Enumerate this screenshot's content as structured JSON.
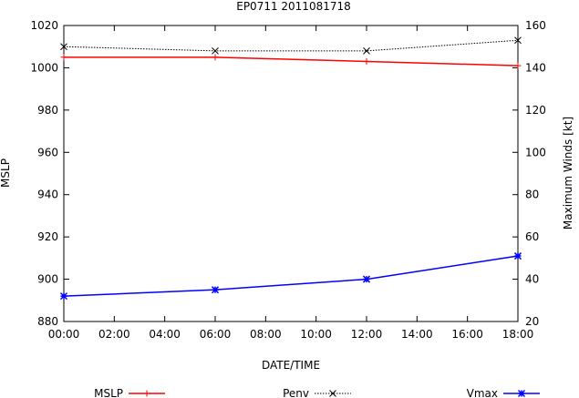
{
  "chart_data": {
    "type": "line",
    "title": "EP0711 2011081718",
    "xlabel": "DATE/TIME",
    "ylabel": "MSLP",
    "y2label": "Maximum Winds [kt]",
    "x": [
      "00:00",
      "06:00",
      "12:00",
      "18:00"
    ],
    "x_hours": [
      0,
      6,
      12,
      18
    ],
    "xticks": [
      "00:00",
      "02:00",
      "04:00",
      "06:00",
      "08:00",
      "10:00",
      "12:00",
      "14:00",
      "16:00",
      "18:00"
    ],
    "xlim": [
      0,
      18
    ],
    "ylim": [
      880,
      1020
    ],
    "yticks": [
      880,
      900,
      920,
      940,
      960,
      980,
      1000,
      1020
    ],
    "y2lim": [
      20,
      160
    ],
    "y2ticks": [
      20,
      40,
      60,
      80,
      100,
      120,
      140,
      160
    ],
    "grid": false,
    "legend_position": "bottom",
    "series": [
      {
        "name": "MSLP",
        "axis": "left",
        "color": "#ff0000",
        "marker": "plus",
        "dash": "solid",
        "values": [
          1005,
          1005,
          1003,
          1001
        ]
      },
      {
        "name": "Penv",
        "axis": "left",
        "color": "#000000",
        "marker": "x",
        "dash": "dotted",
        "values": [
          1010,
          1008,
          1008,
          1013
        ]
      },
      {
        "name": "Vmax",
        "axis": "right",
        "color": "#0000ff",
        "marker": "star",
        "dash": "solid",
        "values": [
          32,
          35,
          40,
          51
        ]
      }
    ]
  }
}
